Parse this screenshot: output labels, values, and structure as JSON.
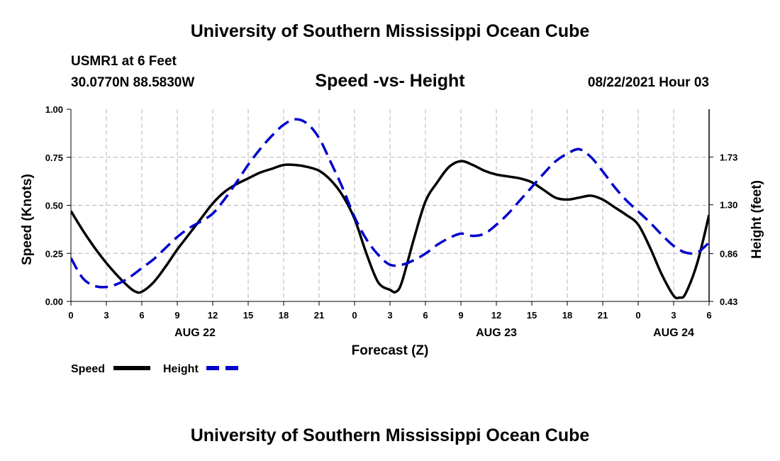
{
  "header": {
    "title_top": "University of Southern Mississippi Ocean Cube",
    "station": "USMR1 at 6 Feet",
    "coords": "30.0770N  88.5830W",
    "date": "08/22/2021 Hour 03"
  },
  "footer": {
    "title_bottom": "University of Southern Mississippi Ocean Cube"
  },
  "colors": {
    "speed": "#000000",
    "height": "#0000cc",
    "grid": "#b4b4b4"
  },
  "chart_data": {
    "type": "line",
    "title": "Speed -vs- Height",
    "xlabel": "Forecast (Z)",
    "ylabel": "Speed (Knots)",
    "y2label": "Height (feet)",
    "xlim": [
      0,
      54
    ],
    "ylim": [
      0,
      1
    ],
    "y2lim": [
      0.43,
      2.16
    ],
    "x_ticks": [
      0,
      3,
      6,
      9,
      12,
      15,
      18,
      21,
      24,
      27,
      30,
      33,
      36,
      39,
      42,
      45,
      48,
      51,
      54
    ],
    "x_tick_labels": [
      "0",
      "3",
      "6",
      "9",
      "12",
      "15",
      "18",
      "21",
      "0",
      "3",
      "6",
      "9",
      "12",
      "15",
      "18",
      "21",
      "0",
      "3",
      "6"
    ],
    "y_ticks": [
      0,
      0.25,
      0.5,
      0.75,
      1
    ],
    "y_tick_labels": [
      "0.00",
      "0.25",
      "0.50",
      "0.75",
      "1.00"
    ],
    "y2_ticks": [
      0.43,
      0.86,
      1.3,
      1.73
    ],
    "y2_tick_labels": [
      "0.43",
      "0.86",
      "1.30",
      "1.73"
    ],
    "date_labels": [
      {
        "x": 10.5,
        "label": "AUG 22"
      },
      {
        "x": 36.0,
        "label": "AUG 23"
      },
      {
        "x": 51.0,
        "label": "AUG 24"
      }
    ],
    "series": [
      {
        "name": "Speed",
        "axis": "left",
        "style": "solid",
        "x": [
          0,
          1,
          2,
          3,
          4,
          5,
          5.5,
          6,
          7,
          8,
          9,
          10,
          11,
          12,
          13,
          14,
          15,
          16,
          17,
          18,
          19,
          20,
          21,
          22,
          23,
          24,
          25,
          26,
          27,
          27.5,
          28,
          29,
          30,
          31,
          32,
          33,
          34,
          35,
          36,
          37,
          38,
          39,
          40,
          41,
          42,
          43,
          44,
          45,
          46,
          47,
          48,
          49,
          50,
          51,
          51.5,
          52,
          53,
          54
        ],
        "values": [
          0.47,
          0.37,
          0.28,
          0.2,
          0.13,
          0.07,
          0.05,
          0.05,
          0.1,
          0.18,
          0.27,
          0.35,
          0.43,
          0.51,
          0.57,
          0.61,
          0.64,
          0.67,
          0.69,
          0.71,
          0.71,
          0.7,
          0.68,
          0.63,
          0.55,
          0.43,
          0.25,
          0.1,
          0.06,
          0.05,
          0.1,
          0.32,
          0.52,
          0.62,
          0.7,
          0.73,
          0.71,
          0.68,
          0.66,
          0.65,
          0.64,
          0.62,
          0.58,
          0.54,
          0.53,
          0.54,
          0.55,
          0.53,
          0.49,
          0.45,
          0.4,
          0.28,
          0.14,
          0.03,
          0.02,
          0.04,
          0.2,
          0.45
        ]
      },
      {
        "name": "Height",
        "axis": "right",
        "style": "dashed",
        "x": [
          0,
          1,
          2,
          3,
          4,
          5,
          6,
          7,
          8,
          9,
          10,
          11,
          12,
          13,
          14,
          15,
          16,
          17,
          18,
          19,
          20,
          21,
          22,
          23,
          24,
          25,
          26,
          27,
          28,
          29,
          30,
          31,
          32,
          33,
          34,
          35,
          36,
          37,
          38,
          39,
          40,
          41,
          42,
          43,
          44,
          45,
          46,
          47,
          48,
          49,
          50,
          51,
          52,
          53,
          54
        ],
        "values": [
          0.82,
          0.64,
          0.57,
          0.56,
          0.59,
          0.65,
          0.73,
          0.81,
          0.91,
          1.01,
          1.09,
          1.15,
          1.22,
          1.35,
          1.5,
          1.66,
          1.8,
          1.92,
          2.02,
          2.07,
          2.03,
          1.9,
          1.68,
          1.45,
          1.19,
          0.99,
          0.85,
          0.76,
          0.76,
          0.8,
          0.86,
          0.94,
          1.0,
          1.04,
          1.02,
          1.04,
          1.12,
          1.22,
          1.34,
          1.46,
          1.58,
          1.69,
          1.76,
          1.8,
          1.73,
          1.6,
          1.46,
          1.34,
          1.24,
          1.14,
          1.03,
          0.93,
          0.87,
          0.87,
          0.96
        ]
      }
    ],
    "legend": [
      {
        "label": "Speed",
        "style": "solid"
      },
      {
        "label": "Height",
        "style": "dashed"
      }
    ]
  }
}
